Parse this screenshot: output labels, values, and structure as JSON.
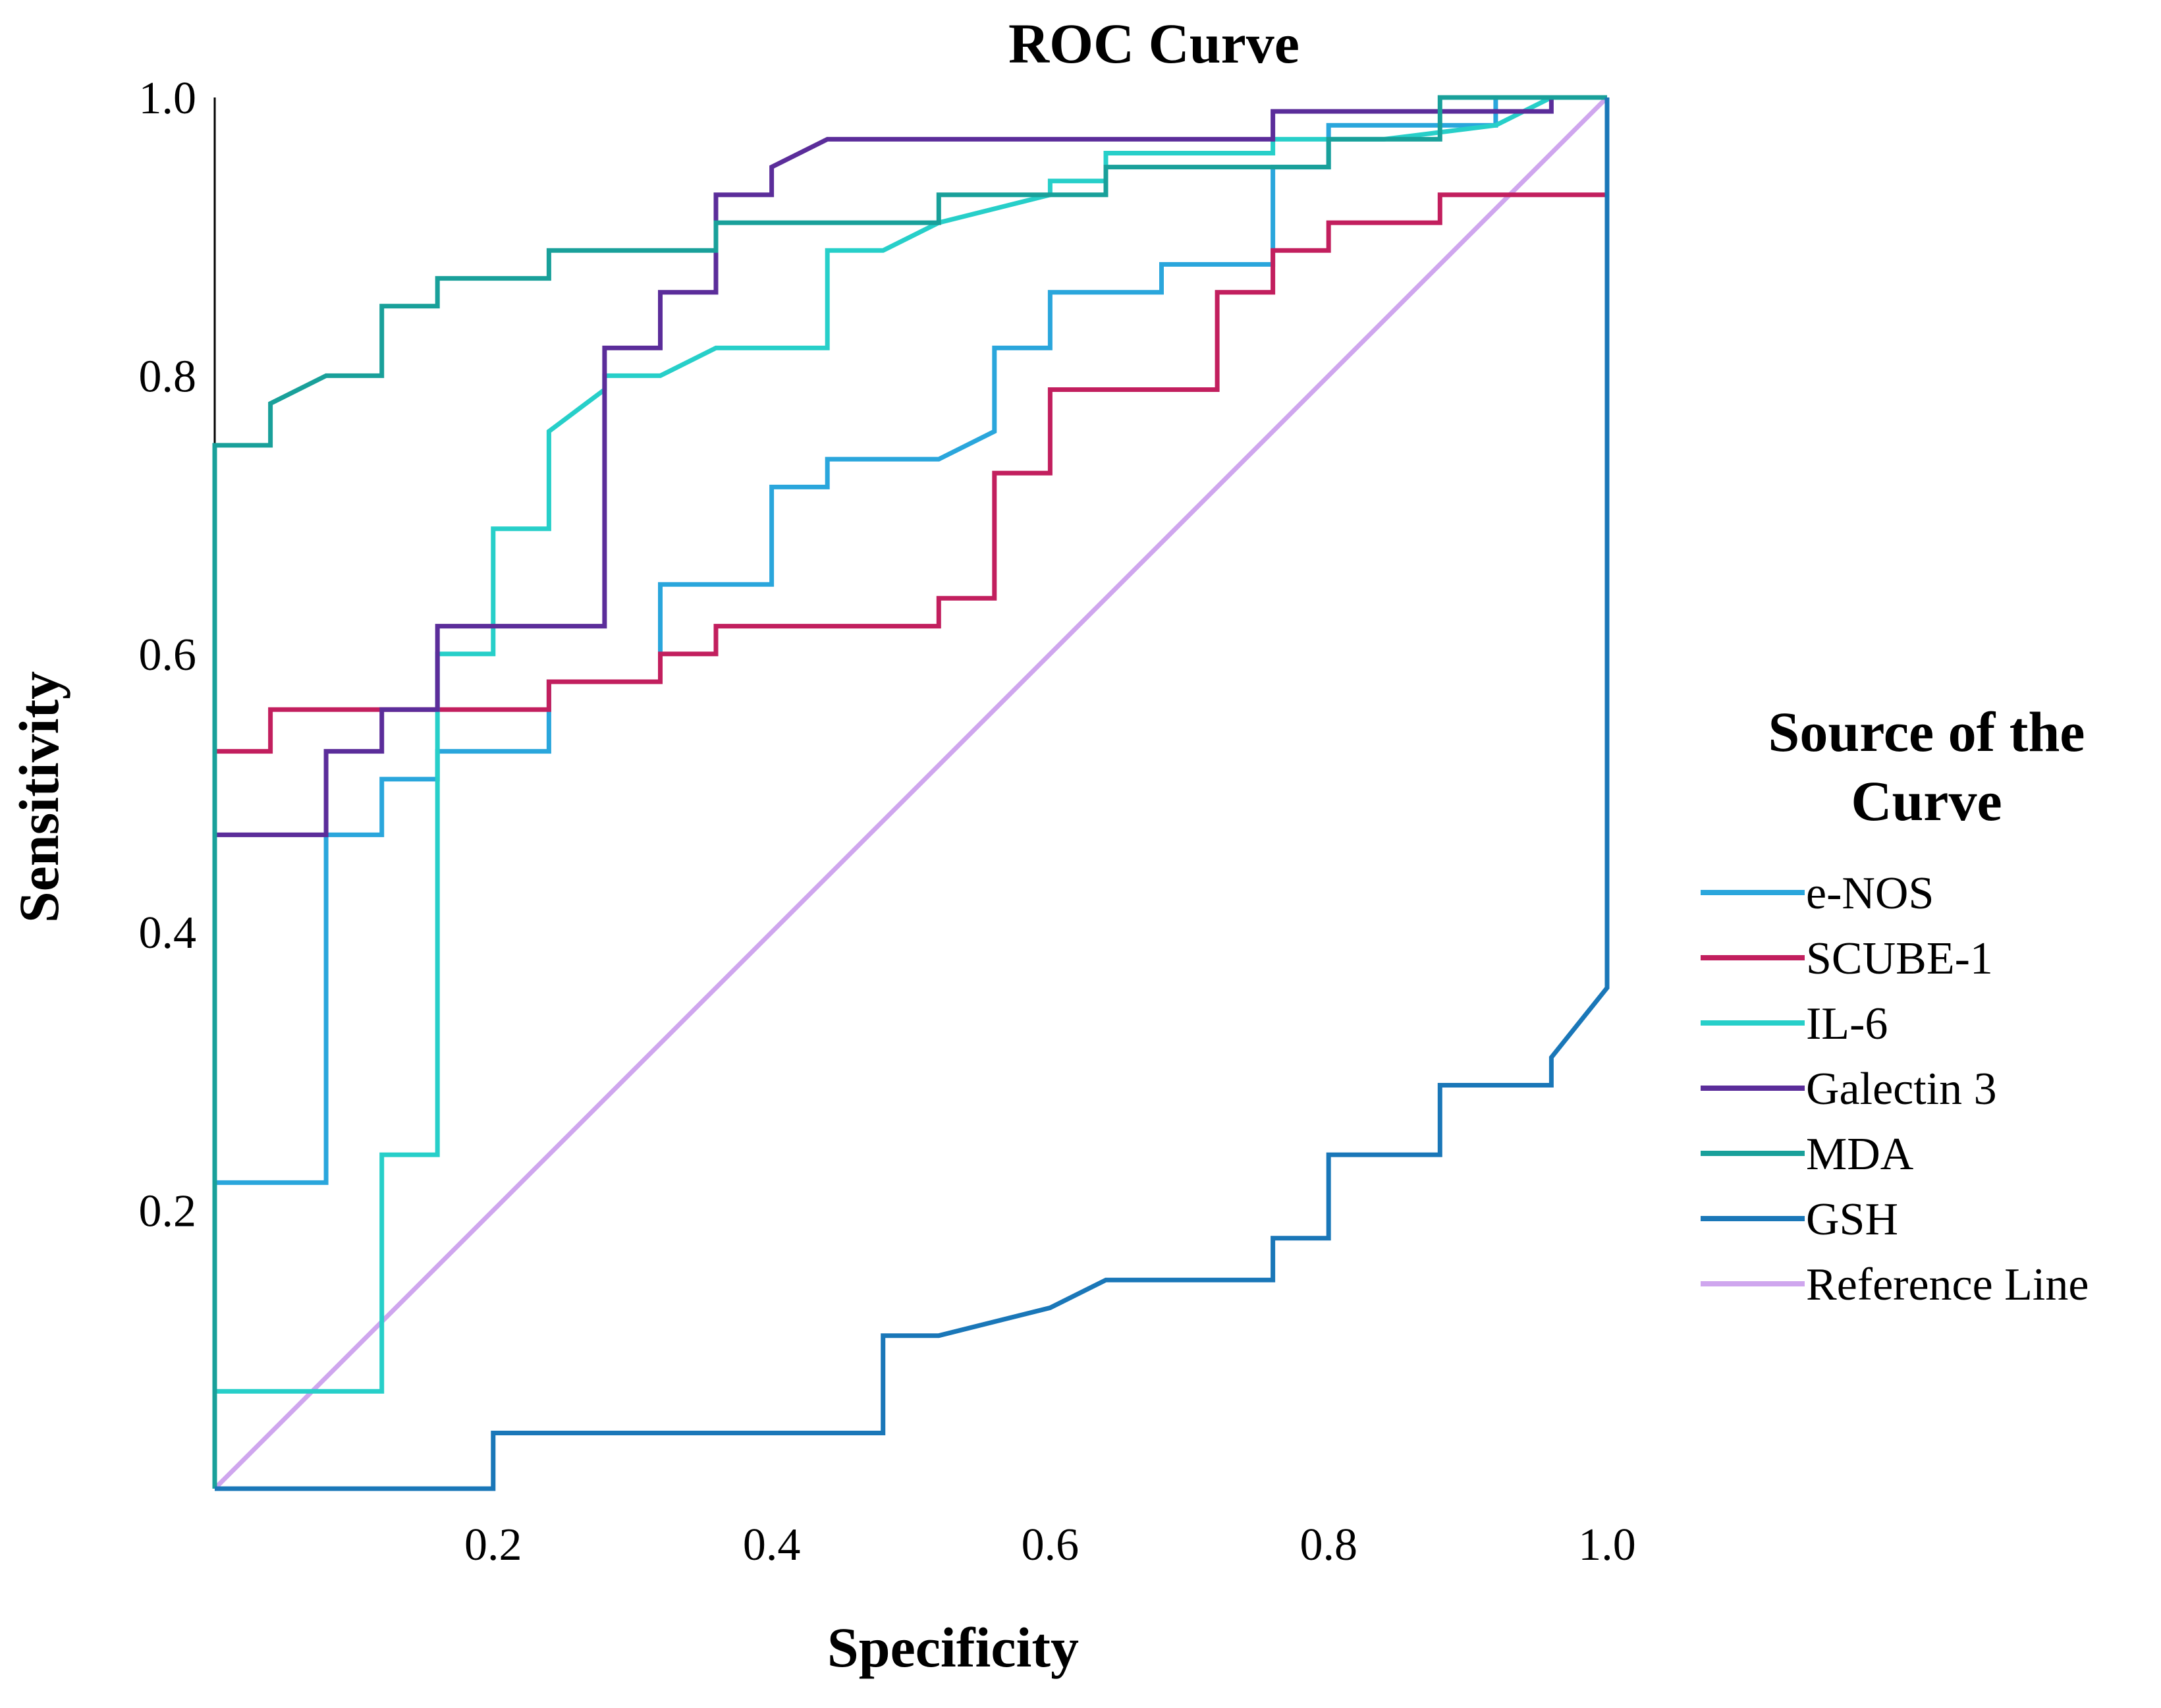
{
  "chart_data": {
    "type": "line",
    "title": "ROC Curve",
    "xlabel": "Specificity",
    "ylabel": "Sensitivity",
    "xlim": [
      0,
      1
    ],
    "ylim": [
      0,
      1
    ],
    "x_ticks": [
      {
        "value": 0.2,
        "label": "0.2"
      },
      {
        "value": 0.4,
        "label": "0.4"
      },
      {
        "value": 0.6,
        "label": "0.6"
      },
      {
        "value": 0.8,
        "label": "0.8"
      },
      {
        "value": 1.0,
        "label": "1.0"
      }
    ],
    "y_ticks": [
      {
        "value": 0.2,
        "label": "0.2"
      },
      {
        "value": 0.4,
        "label": "0.4"
      },
      {
        "value": 0.6,
        "label": "0.6"
      },
      {
        "value": 0.8,
        "label": "0.8"
      },
      {
        "value": 1.0,
        "label": "1.0"
      }
    ],
    "grid": false,
    "legend": {
      "title_lines": [
        "Source of the",
        "Curve"
      ],
      "position": "right"
    },
    "series": [
      {
        "name": "e-NOS",
        "color": "#2aa6dc",
        "points": [
          [
            0,
            0
          ],
          [
            0,
            0.22
          ],
          [
            0.08,
            0.22
          ],
          [
            0.08,
            0.47
          ],
          [
            0.12,
            0.47
          ],
          [
            0.12,
            0.51
          ],
          [
            0.16,
            0.51
          ],
          [
            0.16,
            0.53
          ],
          [
            0.24,
            0.53
          ],
          [
            0.24,
            0.58
          ],
          [
            0.32,
            0.58
          ],
          [
            0.32,
            0.65
          ],
          [
            0.4,
            0.65
          ],
          [
            0.4,
            0.72
          ],
          [
            0.44,
            0.72
          ],
          [
            0.44,
            0.74
          ],
          [
            0.52,
            0.74
          ],
          [
            0.56,
            0.76
          ],
          [
            0.56,
            0.82
          ],
          [
            0.6,
            0.82
          ],
          [
            0.6,
            0.86
          ],
          [
            0.68,
            0.86
          ],
          [
            0.68,
            0.88
          ],
          [
            0.76,
            0.88
          ],
          [
            0.76,
            0.95
          ],
          [
            0.8,
            0.95
          ],
          [
            0.8,
            0.98
          ],
          [
            0.92,
            0.98
          ],
          [
            0.92,
            1.0
          ],
          [
            1.0,
            1.0
          ]
        ]
      },
      {
        "name": "SCUBE-1",
        "color": "#c21f5e",
        "points": [
          [
            0,
            0
          ],
          [
            0,
            0.53
          ],
          [
            0.04,
            0.53
          ],
          [
            0.04,
            0.56
          ],
          [
            0.24,
            0.56
          ],
          [
            0.24,
            0.58
          ],
          [
            0.32,
            0.58
          ],
          [
            0.32,
            0.6
          ],
          [
            0.36,
            0.6
          ],
          [
            0.36,
            0.62
          ],
          [
            0.52,
            0.62
          ],
          [
            0.52,
            0.64
          ],
          [
            0.56,
            0.64
          ],
          [
            0.56,
            0.73
          ],
          [
            0.6,
            0.73
          ],
          [
            0.6,
            0.79
          ],
          [
            0.72,
            0.79
          ],
          [
            0.72,
            0.86
          ],
          [
            0.76,
            0.86
          ],
          [
            0.76,
            0.89
          ],
          [
            0.8,
            0.89
          ],
          [
            0.8,
            0.91
          ],
          [
            0.88,
            0.91
          ],
          [
            0.88,
            0.93
          ],
          [
            1.0,
            0.93
          ],
          [
            1.0,
            1.0
          ]
        ]
      },
      {
        "name": "IL-6",
        "color": "#27cfc9",
        "points": [
          [
            0,
            0
          ],
          [
            0,
            0.07
          ],
          [
            0.12,
            0.07
          ],
          [
            0.12,
            0.24
          ],
          [
            0.16,
            0.24
          ],
          [
            0.16,
            0.6
          ],
          [
            0.2,
            0.6
          ],
          [
            0.2,
            0.69
          ],
          [
            0.24,
            0.69
          ],
          [
            0.24,
            0.76
          ],
          [
            0.28,
            0.79
          ],
          [
            0.28,
            0.8
          ],
          [
            0.32,
            0.8
          ],
          [
            0.36,
            0.82
          ],
          [
            0.44,
            0.82
          ],
          [
            0.44,
            0.89
          ],
          [
            0.48,
            0.89
          ],
          [
            0.52,
            0.91
          ],
          [
            0.6,
            0.93
          ],
          [
            0.6,
            0.94
          ],
          [
            0.64,
            0.94
          ],
          [
            0.64,
            0.96
          ],
          [
            0.76,
            0.96
          ],
          [
            0.76,
            0.97
          ],
          [
            0.84,
            0.97
          ],
          [
            0.92,
            0.98
          ],
          [
            0.96,
            1.0
          ],
          [
            1.0,
            1.0
          ]
        ]
      },
      {
        "name": "Galectin 3",
        "color": "#5b2d9a",
        "points": [
          [
            0,
            0
          ],
          [
            0,
            0.47
          ],
          [
            0.08,
            0.47
          ],
          [
            0.08,
            0.53
          ],
          [
            0.12,
            0.53
          ],
          [
            0.12,
            0.56
          ],
          [
            0.16,
            0.56
          ],
          [
            0.16,
            0.62
          ],
          [
            0.28,
            0.62
          ],
          [
            0.28,
            0.82
          ],
          [
            0.32,
            0.82
          ],
          [
            0.32,
            0.86
          ],
          [
            0.36,
            0.86
          ],
          [
            0.36,
            0.93
          ],
          [
            0.4,
            0.93
          ],
          [
            0.4,
            0.95
          ],
          [
            0.44,
            0.97
          ],
          [
            0.76,
            0.97
          ],
          [
            0.76,
            0.99
          ],
          [
            0.96,
            0.99
          ],
          [
            0.96,
            1.0
          ],
          [
            1.0,
            1.0
          ]
        ]
      },
      {
        "name": "MDA",
        "color": "#19a09a",
        "points": [
          [
            0,
            0
          ],
          [
            0,
            0.75
          ],
          [
            0.04,
            0.75
          ],
          [
            0.04,
            0.78
          ],
          [
            0.08,
            0.8
          ],
          [
            0.12,
            0.8
          ],
          [
            0.12,
            0.85
          ],
          [
            0.16,
            0.85
          ],
          [
            0.16,
            0.87
          ],
          [
            0.24,
            0.87
          ],
          [
            0.24,
            0.89
          ],
          [
            0.36,
            0.89
          ],
          [
            0.36,
            0.91
          ],
          [
            0.52,
            0.91
          ],
          [
            0.52,
            0.93
          ],
          [
            0.64,
            0.93
          ],
          [
            0.64,
            0.95
          ],
          [
            0.8,
            0.95
          ],
          [
            0.8,
            0.97
          ],
          [
            0.88,
            0.97
          ],
          [
            0.88,
            1.0
          ],
          [
            1.0,
            1.0
          ]
        ]
      },
      {
        "name": "GSH",
        "color": "#1a77b8",
        "points": [
          [
            0,
            0
          ],
          [
            0.2,
            0
          ],
          [
            0.2,
            0.04
          ],
          [
            0.48,
            0.04
          ],
          [
            0.48,
            0.11
          ],
          [
            0.52,
            0.11
          ],
          [
            0.6,
            0.13
          ],
          [
            0.64,
            0.15
          ],
          [
            0.76,
            0.15
          ],
          [
            0.76,
            0.18
          ],
          [
            0.8,
            0.18
          ],
          [
            0.8,
            0.24
          ],
          [
            0.88,
            0.24
          ],
          [
            0.88,
            0.29
          ],
          [
            0.96,
            0.29
          ],
          [
            0.96,
            0.31
          ],
          [
            1.0,
            0.36
          ],
          [
            1.0,
            1.0
          ]
        ]
      },
      {
        "name": "Reference Line",
        "color": "#cfa6ee",
        "points": [
          [
            0,
            0
          ],
          [
            1,
            1
          ]
        ]
      }
    ]
  }
}
